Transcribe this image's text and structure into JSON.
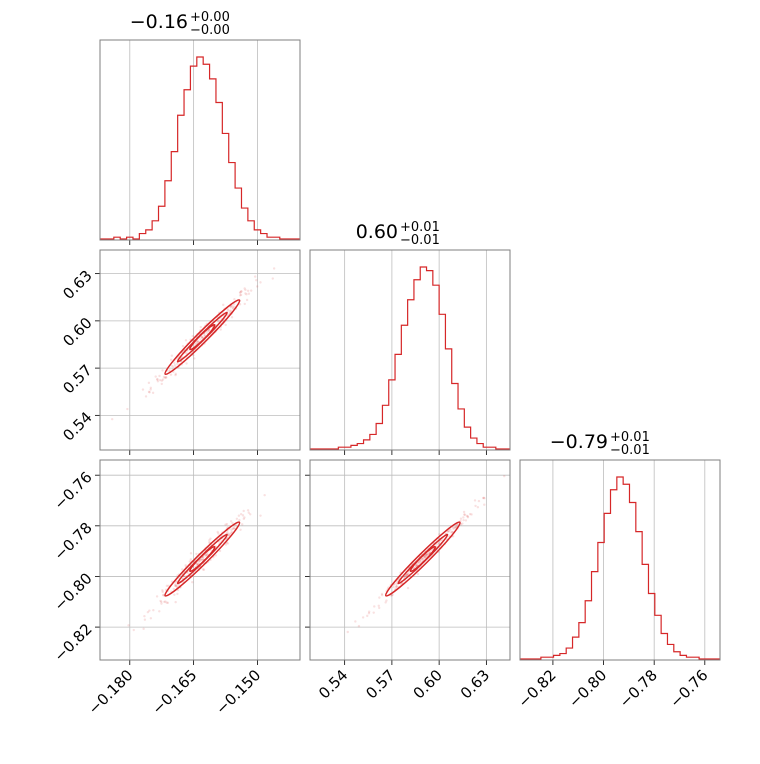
{
  "chart_data": {
    "type": "corner",
    "color": "#d62728",
    "grid": true,
    "parameters": [
      {
        "title_value": "−0.16",
        "title_plus": "+0.00",
        "title_minus": "−0.00",
        "range": [
          -0.187,
          -0.14
        ],
        "ticks": [
          -0.18,
          -0.165,
          -0.15
        ],
        "tick_labels": [
          "−0.180",
          "−0.165",
          "−0.150"
        ],
        "hist_x": [
          -0.186,
          -0.1845,
          -0.183,
          -0.1815,
          -0.18,
          -0.1785,
          -0.177,
          -0.1755,
          -0.174,
          -0.1725,
          -0.171,
          -0.1695,
          -0.168,
          -0.1665,
          -0.165,
          -0.1635,
          -0.162,
          -0.1605,
          -0.159,
          -0.1575,
          -0.156,
          -0.1545,
          -0.153,
          -0.1515,
          -0.15,
          -0.1485,
          -0.147,
          -0.1455,
          -0.144,
          -0.1425,
          -0.141
        ],
        "hist_y": [
          0,
          0,
          1,
          0,
          1,
          0,
          3,
          5,
          10,
          18,
          32,
          48,
          68,
          82,
          95,
          100,
          96,
          88,
          75,
          58,
          42,
          28,
          17,
          10,
          5,
          3,
          1,
          1,
          0,
          0,
          0
        ]
      },
      {
        "title_value": "0.60",
        "title_plus": "+0.01",
        "title_minus": "−0.01",
        "range": [
          0.518,
          0.645
        ],
        "ticks": [
          0.54,
          0.57,
          0.6,
          0.63
        ],
        "tick_labels": [
          "0.54",
          "0.57",
          "0.60",
          "0.63"
        ],
        "hist_x": [
          0.522,
          0.526,
          0.53,
          0.534,
          0.538,
          0.542,
          0.546,
          0.55,
          0.554,
          0.558,
          0.562,
          0.566,
          0.57,
          0.574,
          0.578,
          0.582,
          0.586,
          0.59,
          0.594,
          0.598,
          0.602,
          0.606,
          0.61,
          0.614,
          0.618,
          0.622,
          0.626,
          0.63,
          0.634,
          0.638,
          0.642
        ],
        "hist_y": [
          0,
          0,
          0,
          0,
          1,
          1,
          2,
          3,
          5,
          8,
          14,
          24,
          38,
          52,
          68,
          82,
          93,
          100,
          98,
          90,
          74,
          55,
          36,
          22,
          12,
          6,
          3,
          1,
          1,
          0,
          0
        ]
      },
      {
        "title_value": "−0.79",
        "title_plus": "+0.01",
        "title_minus": "−0.01",
        "range": [
          -0.833,
          -0.754
        ],
        "ticks": [
          -0.82,
          -0.8,
          -0.78,
          -0.76
        ],
        "tick_labels": [
          "−0.82",
          "−0.80",
          "−0.78",
          "−0.76"
        ],
        "hist_x": [
          -0.831,
          -0.8285,
          -0.826,
          -0.8235,
          -0.821,
          -0.8185,
          -0.816,
          -0.8135,
          -0.811,
          -0.8085,
          -0.806,
          -0.8035,
          -0.801,
          -0.7985,
          -0.796,
          -0.7935,
          -0.791,
          -0.7885,
          -0.786,
          -0.7835,
          -0.781,
          -0.7785,
          -0.776,
          -0.7735,
          -0.771,
          -0.7685,
          -0.766,
          -0.7635,
          -0.761,
          -0.7585,
          -0.756
        ],
        "hist_y": [
          0,
          0,
          0,
          1,
          1,
          2,
          3,
          6,
          12,
          20,
          32,
          48,
          64,
          80,
          93,
          100,
          96,
          86,
          70,
          52,
          36,
          24,
          14,
          8,
          4,
          2,
          1,
          1,
          0,
          0,
          0
        ]
      }
    ],
    "correlations": [
      {
        "rows": [
          1,
          0
        ],
        "rho": 0.98
      },
      {
        "rows": [
          2,
          0
        ],
        "rho": 0.98
      },
      {
        "rows": [
          2,
          1
        ],
        "rho": 0.99
      }
    ]
  }
}
